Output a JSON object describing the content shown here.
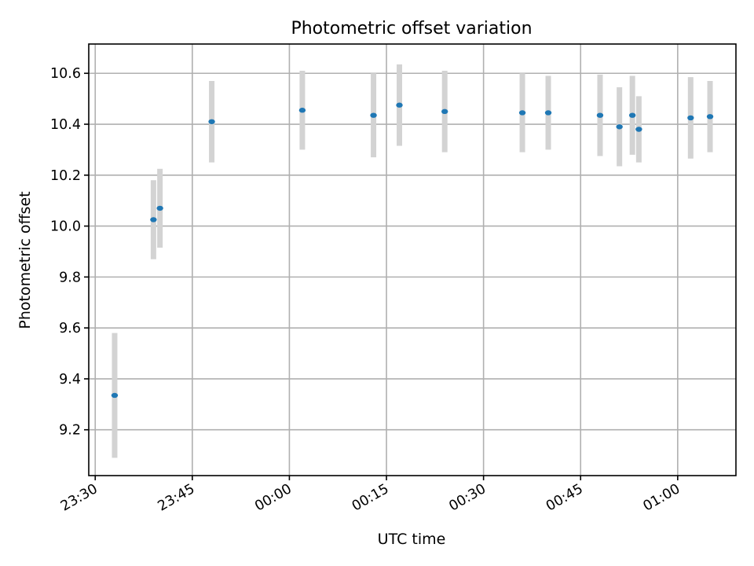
{
  "chart_data": {
    "type": "scatter",
    "title": "Photometric offset variation",
    "xlabel": "UTC time",
    "ylabel": "Photometric offset",
    "x_ticks": [
      "23:30",
      "23:45",
      "00:00",
      "00:15",
      "00:30",
      "00:45",
      "01:00"
    ],
    "y_ticks": [
      "9.2",
      "9.4",
      "9.6",
      "9.8",
      "10.0",
      "10.2",
      "10.4",
      "10.6"
    ],
    "x_range": [
      "23:29",
      "01:09"
    ],
    "ylim": [
      9.02,
      10.715
    ],
    "grid": true,
    "colors": {
      "points": "#1f77b4",
      "errorbars": "#d3d3d3"
    },
    "points": [
      {
        "x": "23:33",
        "y": 9.335,
        "err": 0.245
      },
      {
        "x": "23:39",
        "y": 10.025,
        "err": 0.155
      },
      {
        "x": "23:40",
        "y": 10.07,
        "err": 0.155
      },
      {
        "x": "23:48",
        "y": 10.41,
        "err": 0.16
      },
      {
        "x": "00:02",
        "y": 10.455,
        "err": 0.155
      },
      {
        "x": "00:13",
        "y": 10.435,
        "err": 0.165
      },
      {
        "x": "00:17",
        "y": 10.475,
        "err": 0.16
      },
      {
        "x": "00:24",
        "y": 10.45,
        "err": 0.16
      },
      {
        "x": "00:36",
        "y": 10.445,
        "err": 0.155
      },
      {
        "x": "00:40",
        "y": 10.445,
        "err": 0.145
      },
      {
        "x": "00:48",
        "y": 10.435,
        "err": 0.16
      },
      {
        "x": "00:51",
        "y": 10.39,
        "err": 0.155
      },
      {
        "x": "00:53",
        "y": 10.435,
        "err": 0.155
      },
      {
        "x": "00:54",
        "y": 10.38,
        "err": 0.13
      },
      {
        "x": "01:02",
        "y": 10.425,
        "err": 0.16
      },
      {
        "x": "01:05",
        "y": 10.43,
        "err": 0.14
      }
    ]
  }
}
